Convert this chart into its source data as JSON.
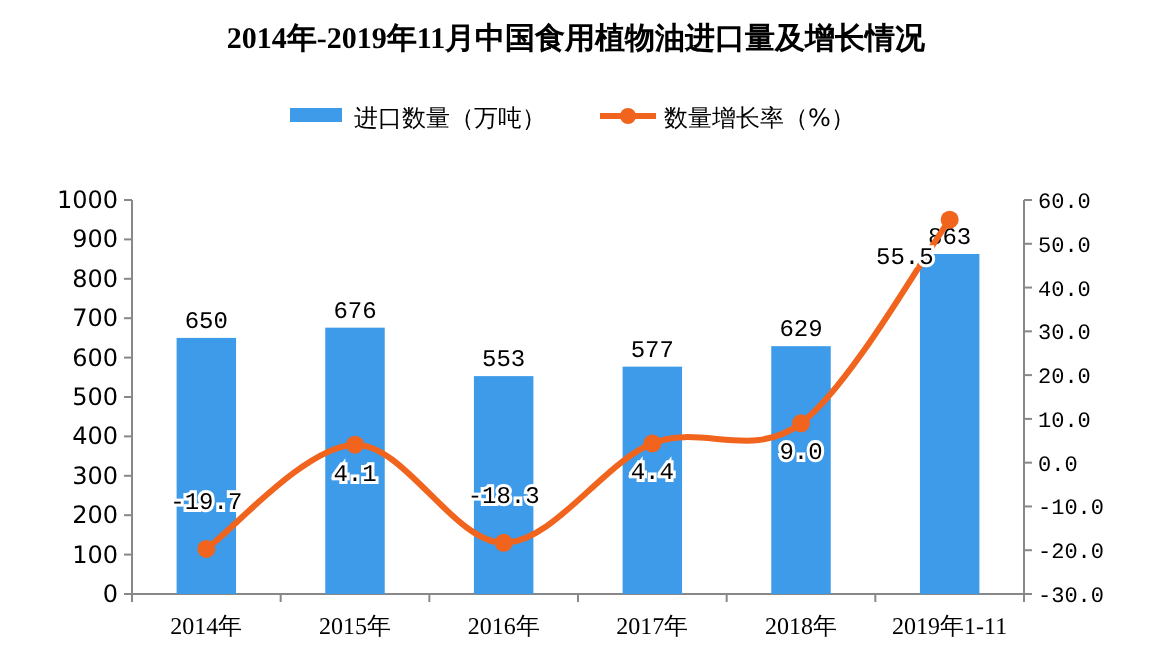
{
  "chart_data": {
    "type": "bar",
    "title": "2014年-2019年11月中国食用植物油进口量及增长情况",
    "categories": [
      "2014年",
      "2015年",
      "2016年",
      "2017年",
      "2018年",
      "2019年1-11"
    ],
    "series": [
      {
        "name": "进口数量（万吨）",
        "color": "#3d9be9",
        "values": [
          650,
          676,
          553,
          577,
          629,
          863
        ],
        "value_labels": [
          "650",
          "676",
          "553",
          "577",
          "629",
          "863"
        ]
      },
      {
        "name": "数量增长率（%）",
        "type": "line",
        "axis": "y2",
        "color": "#f0641e",
        "marker": "circle",
        "values": [
          -19.7,
          4.1,
          -18.3,
          4.4,
          9.0,
          55.5
        ],
        "value_labels": [
          "-19.7",
          "4.1",
          "-18.3",
          "4.4",
          "9.0",
          "55.5"
        ]
      }
    ],
    "ylim": [
      0,
      1000
    ],
    "yticks": [
      0,
      100,
      200,
      300,
      400,
      500,
      600,
      700,
      800,
      900,
      1000
    ],
    "y2lim": [
      -30,
      60
    ],
    "y2ticks": [
      {
        "value": -30,
        "label": "-30.0"
      },
      {
        "value": -20,
        "label": "-20.0"
      },
      {
        "value": -10,
        "label": "-10.0"
      },
      {
        "value": 0,
        "label": "0.0"
      },
      {
        "value": 10,
        "label": "10.0"
      },
      {
        "value": 20,
        "label": "20.0"
      },
      {
        "value": 30,
        "label": "30.0"
      },
      {
        "value": 40,
        "label": "40.0"
      },
      {
        "value": 50,
        "label": "50.0"
      },
      {
        "value": 60,
        "label": "60.0"
      }
    ],
    "grid": false,
    "legend": "top"
  }
}
